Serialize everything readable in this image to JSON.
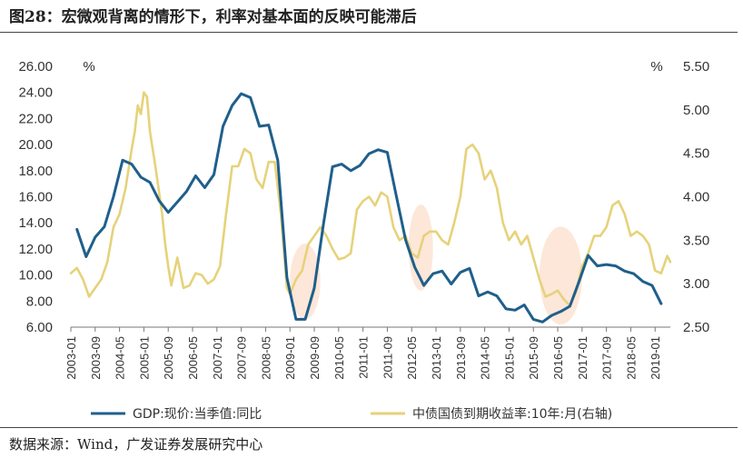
{
  "title": "图28：宏微观背离的情形下，利率对基本面的反映可能滞后",
  "source": "数据来源：Wind，广发证券发展研究中心",
  "chart_data": {
    "type": "line",
    "x_ticks": [
      "2003-01",
      "2003-09",
      "2004-05",
      "2005-01",
      "2005-09",
      "2006-05",
      "2007-01",
      "2007-09",
      "2008-05",
      "2009-01",
      "2009-09",
      "2010-05",
      "2011-01",
      "2011-09",
      "2012-05",
      "2013-01",
      "2013-09",
      "2014-05",
      "2015-01",
      "2015-09",
      "2016-05",
      "2017-01",
      "2017-09",
      "2018-05",
      "2019-01"
    ],
    "y_left": {
      "unit": "%",
      "ticks": [
        "6.00",
        "8.00",
        "10.00",
        "12.00",
        "14.00",
        "16.00",
        "18.00",
        "20.00",
        "22.00",
        "24.00",
        "26.00"
      ],
      "min": 6,
      "max": 26
    },
    "y_right": {
      "unit": "%",
      "ticks": [
        "2.50",
        "3.00",
        "3.50",
        "4.00",
        "4.50",
        "5.00",
        "5.50"
      ],
      "min": 2.5,
      "max": 5.5
    },
    "series": [
      {
        "name": "GDP:现价:当季值:同比",
        "axis": "left",
        "color": "#1f5f8b",
        "points": [
          [
            "2003-03",
            13.5
          ],
          [
            "2003-06",
            11.4
          ],
          [
            "2003-09",
            12.9
          ],
          [
            "2003-12",
            13.7
          ],
          [
            "2004-03",
            16.0
          ],
          [
            "2004-06",
            18.8
          ],
          [
            "2004-09",
            18.5
          ],
          [
            "2004-12",
            17.5
          ],
          [
            "2005-03",
            17.1
          ],
          [
            "2005-06",
            15.7
          ],
          [
            "2005-09",
            14.8
          ],
          [
            "2005-12",
            15.6
          ],
          [
            "2006-03",
            16.4
          ],
          [
            "2006-06",
            17.6
          ],
          [
            "2006-09",
            16.7
          ],
          [
            "2006-12",
            17.7
          ],
          [
            "2007-03",
            21.4
          ],
          [
            "2007-06",
            23.0
          ],
          [
            "2007-09",
            23.9
          ],
          [
            "2007-12",
            23.6
          ],
          [
            "2008-03",
            21.4
          ],
          [
            "2008-06",
            21.5
          ],
          [
            "2008-09",
            18.8
          ],
          [
            "2008-12",
            9.8
          ],
          [
            "2009-03",
            6.6
          ],
          [
            "2009-06",
            6.6
          ],
          [
            "2009-09",
            9.0
          ],
          [
            "2009-12",
            13.9
          ],
          [
            "2010-03",
            18.3
          ],
          [
            "2010-06",
            18.5
          ],
          [
            "2010-09",
            18.0
          ],
          [
            "2010-12",
            18.4
          ],
          [
            "2011-03",
            19.3
          ],
          [
            "2011-06",
            19.6
          ],
          [
            "2011-09",
            19.4
          ],
          [
            "2011-12",
            16.0
          ],
          [
            "2012-03",
            12.7
          ],
          [
            "2012-06",
            10.6
          ],
          [
            "2012-09",
            9.2
          ],
          [
            "2012-12",
            10.1
          ],
          [
            "2013-03",
            10.3
          ],
          [
            "2013-06",
            9.3
          ],
          [
            "2013-09",
            10.2
          ],
          [
            "2013-12",
            10.5
          ],
          [
            "2014-03",
            8.4
          ],
          [
            "2014-06",
            8.7
          ],
          [
            "2014-09",
            8.4
          ],
          [
            "2014-12",
            7.4
          ],
          [
            "2015-03",
            7.3
          ],
          [
            "2015-06",
            7.7
          ],
          [
            "2015-09",
            6.6
          ],
          [
            "2015-12",
            6.4
          ],
          [
            "2016-03",
            6.9
          ],
          [
            "2016-06",
            7.2
          ],
          [
            "2016-09",
            7.6
          ],
          [
            "2016-12",
            9.5
          ],
          [
            "2017-03",
            11.5
          ],
          [
            "2017-06",
            10.7
          ],
          [
            "2017-09",
            10.8
          ],
          [
            "2017-12",
            10.7
          ],
          [
            "2018-03",
            10.3
          ],
          [
            "2018-06",
            10.1
          ],
          [
            "2018-09",
            9.5
          ],
          [
            "2018-12",
            9.2
          ],
          [
            "2019-03",
            7.8
          ]
        ]
      },
      {
        "name": "中债国债到期收益率:10年:月(右轴)",
        "axis": "right",
        "color": "#e6d27a",
        "points": [
          [
            "2003-01",
            3.12
          ],
          [
            "2003-03",
            3.18
          ],
          [
            "2003-05",
            3.05
          ],
          [
            "2003-07",
            2.85
          ],
          [
            "2003-09",
            2.95
          ],
          [
            "2003-11",
            3.05
          ],
          [
            "2004-01",
            3.25
          ],
          [
            "2004-03",
            3.65
          ],
          [
            "2004-05",
            3.8
          ],
          [
            "2004-07",
            4.1
          ],
          [
            "2004-09",
            4.55
          ],
          [
            "2004-10",
            4.75
          ],
          [
            "2004-11",
            5.05
          ],
          [
            "2004-12",
            4.95
          ],
          [
            "2005-01",
            5.2
          ],
          [
            "2005-02",
            5.15
          ],
          [
            "2005-03",
            4.75
          ],
          [
            "2005-05",
            4.3
          ],
          [
            "2005-07",
            3.8
          ],
          [
            "2005-08",
            3.45
          ],
          [
            "2005-09",
            3.2
          ],
          [
            "2005-10",
            2.98
          ],
          [
            "2005-12",
            3.3
          ],
          [
            "2006-02",
            2.95
          ],
          [
            "2006-04",
            2.98
          ],
          [
            "2006-06",
            3.12
          ],
          [
            "2006-08",
            3.1
          ],
          [
            "2006-10",
            3.0
          ],
          [
            "2006-12",
            3.05
          ],
          [
            "2007-02",
            3.2
          ],
          [
            "2007-04",
            3.8
          ],
          [
            "2007-06",
            4.35
          ],
          [
            "2007-08",
            4.35
          ],
          [
            "2007-10",
            4.55
          ],
          [
            "2007-12",
            4.5
          ],
          [
            "2008-02",
            4.2
          ],
          [
            "2008-04",
            4.1
          ],
          [
            "2008-06",
            4.4
          ],
          [
            "2008-08",
            4.4
          ],
          [
            "2008-10",
            3.8
          ],
          [
            "2008-12",
            2.95
          ],
          [
            "2009-01",
            2.88
          ],
          [
            "2009-03",
            3.05
          ],
          [
            "2009-05",
            3.15
          ],
          [
            "2009-07",
            3.45
          ],
          [
            "2009-09",
            3.55
          ],
          [
            "2009-11",
            3.65
          ],
          [
            "2010-01",
            3.55
          ],
          [
            "2010-03",
            3.4
          ],
          [
            "2010-05",
            3.28
          ],
          [
            "2010-07",
            3.3
          ],
          [
            "2010-09",
            3.35
          ],
          [
            "2010-11",
            3.85
          ],
          [
            "2011-01",
            3.95
          ],
          [
            "2011-03",
            4.0
          ],
          [
            "2011-05",
            3.9
          ],
          [
            "2011-07",
            4.05
          ],
          [
            "2011-09",
            4.0
          ],
          [
            "2011-11",
            3.65
          ],
          [
            "2012-01",
            3.5
          ],
          [
            "2012-03",
            3.55
          ],
          [
            "2012-05",
            3.35
          ],
          [
            "2012-07",
            3.3
          ],
          [
            "2012-09",
            3.55
          ],
          [
            "2012-11",
            3.6
          ],
          [
            "2013-01",
            3.6
          ],
          [
            "2013-03",
            3.5
          ],
          [
            "2013-05",
            3.45
          ],
          [
            "2013-07",
            3.7
          ],
          [
            "2013-09",
            4.0
          ],
          [
            "2013-11",
            4.55
          ],
          [
            "2014-01",
            4.6
          ],
          [
            "2014-03",
            4.5
          ],
          [
            "2014-05",
            4.2
          ],
          [
            "2014-07",
            4.3
          ],
          [
            "2014-09",
            4.1
          ],
          [
            "2014-11",
            3.7
          ],
          [
            "2015-01",
            3.5
          ],
          [
            "2015-03",
            3.6
          ],
          [
            "2015-05",
            3.45
          ],
          [
            "2015-07",
            3.55
          ],
          [
            "2015-09",
            3.3
          ],
          [
            "2015-11",
            3.05
          ],
          [
            "2016-01",
            2.85
          ],
          [
            "2016-03",
            2.88
          ],
          [
            "2016-05",
            2.92
          ],
          [
            "2016-07",
            2.82
          ],
          [
            "2016-09",
            2.75
          ],
          [
            "2016-11",
            2.9
          ],
          [
            "2017-01",
            3.2
          ],
          [
            "2017-03",
            3.35
          ],
          [
            "2017-05",
            3.55
          ],
          [
            "2017-07",
            3.55
          ],
          [
            "2017-09",
            3.65
          ],
          [
            "2017-11",
            3.9
          ],
          [
            "2018-01",
            3.95
          ],
          [
            "2018-03",
            3.8
          ],
          [
            "2018-05",
            3.55
          ],
          [
            "2018-07",
            3.6
          ],
          [
            "2018-09",
            3.55
          ],
          [
            "2018-11",
            3.45
          ],
          [
            "2019-01",
            3.15
          ],
          [
            "2019-03",
            3.12
          ],
          [
            "2019-05",
            3.32
          ],
          [
            "2019-06",
            3.25
          ]
        ]
      }
    ],
    "highlights": [
      {
        "from": "2009-01",
        "to": "2009-11",
        "low": 6.6,
        "high": 12.4
      },
      {
        "from": "2012-04",
        "to": "2012-12",
        "low": 8.8,
        "high": 15.4
      },
      {
        "from": "2015-11",
        "to": "2017-01",
        "low": 6.2,
        "high": 13.7
      }
    ],
    "highlight_color": "#fbe3d2",
    "legend_position": "bottom"
  }
}
